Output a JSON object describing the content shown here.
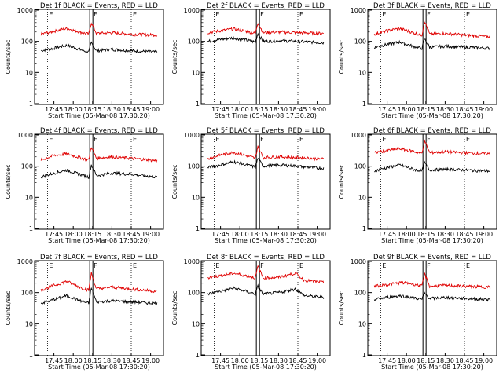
{
  "figure": {
    "ylabel": "Counts/sec",
    "xlabel": "Start Time (05-Mar-08 17:30:20)",
    "x_ticks": [
      "17:45",
      "18:00",
      "18:15",
      "18:30",
      "18:45",
      "19:00"
    ],
    "y_ticks": [
      "1000",
      "100",
      "10",
      "1"
    ],
    "marker_labels": [
      "E",
      "F",
      "E"
    ],
    "colors": {
      "events": "#000000",
      "lld": "#e00000"
    }
  },
  "chart_data": [
    {
      "type": "line",
      "title": "Det 1f BLACK = Events, RED = LLD",
      "xlabel": "Start Time (05-Mar-08 17:30:20)",
      "ylabel": "Counts/sec",
      "ylim": [
        1,
        1000
      ],
      "yscale": "log",
      "x_time_range": [
        "17:30",
        "19:10"
      ],
      "series": [
        {
          "name": "Events",
          "points": [
            [
              "17:35",
              50
            ],
            [
              "17:45",
              60
            ],
            [
              "17:55",
              75
            ],
            [
              "18:05",
              55
            ],
            [
              "18:12",
              45
            ],
            [
              "18:14",
              90
            ],
            [
              "18:18",
              50
            ],
            [
              "18:30",
              55
            ],
            [
              "18:45",
              50
            ],
            [
              "19:05",
              45
            ]
          ]
        },
        {
          "name": "LLD",
          "points": [
            [
              "17:35",
              170
            ],
            [
              "17:45",
              210
            ],
            [
              "17:55",
              260
            ],
            [
              "18:05",
              200
            ],
            [
              "18:12",
              170
            ],
            [
              "18:14",
              400
            ],
            [
              "18:18",
              180
            ],
            [
              "18:30",
              190
            ],
            [
              "18:45",
              170
            ],
            [
              "19:05",
              160
            ]
          ]
        }
      ]
    },
    {
      "type": "line",
      "title": "Det 2f BLACK = Events, RED = LLD",
      "xlabel": "Start Time (05-Mar-08 17:30:20)",
      "ylabel": "Counts/sec",
      "ylim": [
        1,
        1000
      ],
      "yscale": "log",
      "series": [
        {
          "name": "Events",
          "points": [
            [
              "17:35",
              100
            ],
            [
              "17:45",
              115
            ],
            [
              "17:55",
              130
            ],
            [
              "18:05",
              110
            ],
            [
              "18:12",
              95
            ],
            [
              "18:14",
              180
            ],
            [
              "18:18",
              100
            ],
            [
              "18:30",
              105
            ],
            [
              "18:45",
              100
            ],
            [
              "19:05",
              90
            ]
          ]
        },
        {
          "name": "LLD",
          "points": [
            [
              "17:35",
              190
            ],
            [
              "17:45",
              220
            ],
            [
              "17:55",
              250
            ],
            [
              "18:05",
              210
            ],
            [
              "18:12",
              180
            ],
            [
              "18:14",
              400
            ],
            [
              "18:18",
              190
            ],
            [
              "18:30",
              200
            ],
            [
              "18:45",
              190
            ],
            [
              "19:05",
              180
            ]
          ]
        }
      ]
    },
    {
      "type": "line",
      "title": "Det 3f BLACK = Events, RED = LLD",
      "xlabel": "Start Time (05-Mar-08 17:30:20)",
      "ylabel": "Counts/sec",
      "ylim": [
        1,
        1000
      ],
      "yscale": "log",
      "series": [
        {
          "name": "Events",
          "points": [
            [
              "17:35",
              65
            ],
            [
              "17:45",
              80
            ],
            [
              "17:55",
              95
            ],
            [
              "18:05",
              70
            ],
            [
              "18:12",
              60
            ],
            [
              "18:14",
              120
            ],
            [
              "18:18",
              65
            ],
            [
              "18:30",
              70
            ],
            [
              "18:45",
              65
            ],
            [
              "19:05",
              60
            ]
          ]
        },
        {
          "name": "LLD",
          "points": [
            [
              "17:35",
              170
            ],
            [
              "17:45",
              220
            ],
            [
              "17:55",
              260
            ],
            [
              "18:05",
              190
            ],
            [
              "18:12",
              160
            ],
            [
              "18:14",
              450
            ],
            [
              "18:18",
              170
            ],
            [
              "18:30",
              180
            ],
            [
              "18:45",
              160
            ],
            [
              "19:05",
              140
            ]
          ]
        }
      ]
    },
    {
      "type": "line",
      "title": "Det 4f BLACK = Events, RED = LLD",
      "xlabel": "Start Time (05-Mar-08 17:30:20)",
      "ylabel": "Counts/sec",
      "ylim": [
        1,
        1000
      ],
      "yscale": "log",
      "series": [
        {
          "name": "Events",
          "points": [
            [
              "17:35",
              45
            ],
            [
              "17:45",
              60
            ],
            [
              "17:55",
              75
            ],
            [
              "18:05",
              55
            ],
            [
              "18:12",
              45
            ],
            [
              "18:14",
              110
            ],
            [
              "18:18",
              50
            ],
            [
              "18:30",
              60
            ],
            [
              "18:45",
              55
            ],
            [
              "19:05",
              45
            ]
          ]
        },
        {
          "name": "LLD",
          "points": [
            [
              "17:35",
              160
            ],
            [
              "17:45",
              220
            ],
            [
              "17:55",
              250
            ],
            [
              "18:05",
              190
            ],
            [
              "18:12",
              160
            ],
            [
              "18:14",
              420
            ],
            [
              "18:18",
              180
            ],
            [
              "18:30",
              200
            ],
            [
              "18:45",
              180
            ],
            [
              "19:05",
              150
            ]
          ]
        }
      ]
    },
    {
      "type": "line",
      "title": "Det 5f BLACK = Events, RED = LLD",
      "xlabel": "Start Time (05-Mar-08 17:30:20)",
      "ylabel": "Counts/sec",
      "ylim": [
        1,
        1000
      ],
      "yscale": "log",
      "series": [
        {
          "name": "Events",
          "points": [
            [
              "17:35",
              90
            ],
            [
              "17:45",
              110
            ],
            [
              "17:55",
              140
            ],
            [
              "18:05",
              110
            ],
            [
              "18:12",
              95
            ],
            [
              "18:14",
              180
            ],
            [
              "18:18",
              100
            ],
            [
              "18:30",
              110
            ],
            [
              "18:45",
              100
            ],
            [
              "19:05",
              85
            ]
          ]
        },
        {
          "name": "LLD",
          "points": [
            [
              "17:35",
              170
            ],
            [
              "17:45",
              230
            ],
            [
              "17:55",
              280
            ],
            [
              "18:05",
              220
            ],
            [
              "18:12",
              180
            ],
            [
              "18:14",
              450
            ],
            [
              "18:18",
              190
            ],
            [
              "18:30",
              200
            ],
            [
              "18:45",
              190
            ],
            [
              "19:05",
              170
            ]
          ]
        }
      ]
    },
    {
      "type": "line",
      "title": "Det 6f BLACK = Events, RED = LLD",
      "xlabel": "Start Time (05-Mar-08 17:30:20)",
      "ylabel": "Counts/sec",
      "ylim": [
        1,
        1000
      ],
      "yscale": "log",
      "series": [
        {
          "name": "Events",
          "points": [
            [
              "17:35",
              70
            ],
            [
              "17:45",
              90
            ],
            [
              "17:55",
              110
            ],
            [
              "18:05",
              80
            ],
            [
              "18:12",
              70
            ],
            [
              "18:14",
              130
            ],
            [
              "18:18",
              75
            ],
            [
              "18:30",
              80
            ],
            [
              "18:45",
              75
            ],
            [
              "19:05",
              70
            ]
          ]
        },
        {
          "name": "LLD",
          "points": [
            [
              "17:35",
              270
            ],
            [
              "17:45",
              320
            ],
            [
              "17:55",
              360
            ],
            [
              "18:05",
              300
            ],
            [
              "18:12",
              260
            ],
            [
              "18:14",
              650
            ],
            [
              "18:18",
              270
            ],
            [
              "18:30",
              290
            ],
            [
              "18:45",
              270
            ],
            [
              "19:05",
              250
            ]
          ]
        }
      ]
    },
    {
      "type": "line",
      "title": "Det 7f BLACK = Events, RED = LLD",
      "xlabel": "Start Time (05-Mar-08 17:30:20)",
      "ylabel": "Counts/sec",
      "ylim": [
        1,
        1000
      ],
      "yscale": "log",
      "series": [
        {
          "name": "Events",
          "points": [
            [
              "17:35",
              45
            ],
            [
              "17:45",
              60
            ],
            [
              "17:55",
              80
            ],
            [
              "18:05",
              55
            ],
            [
              "18:12",
              45
            ],
            [
              "18:14",
              140
            ],
            [
              "18:18",
              50
            ],
            [
              "18:30",
              55
            ],
            [
              "18:45",
              50
            ],
            [
              "19:05",
              45
            ]
          ]
        },
        {
          "name": "LLD",
          "points": [
            [
              "17:35",
              120
            ],
            [
              "17:45",
              170
            ],
            [
              "17:55",
              230
            ],
            [
              "18:05",
              150
            ],
            [
              "18:12",
              120
            ],
            [
              "18:14",
              420
            ],
            [
              "18:18",
              130
            ],
            [
              "18:30",
              150
            ],
            [
              "18:45",
              130
            ],
            [
              "19:05",
              110
            ]
          ]
        }
      ]
    },
    {
      "type": "line",
      "title": "Det 8f BLACK = Events, RED = LLD",
      "xlabel": "Start Time (05-Mar-08 17:30:20)",
      "ylabel": "Counts/sec",
      "ylim": [
        1,
        1000
      ],
      "yscale": "log",
      "series": [
        {
          "name": "Events",
          "points": [
            [
              "17:35",
              90
            ],
            [
              "17:45",
              110
            ],
            [
              "17:55",
              140
            ],
            [
              "18:05",
              110
            ],
            [
              "18:12",
              90
            ],
            [
              "18:14",
              160
            ],
            [
              "18:18",
              90
            ],
            [
              "18:30",
              100
            ],
            [
              "18:43",
              130
            ],
            [
              "18:50",
              80
            ],
            [
              "19:05",
              70
            ]
          ]
        },
        {
          "name": "LLD",
          "points": [
            [
              "17:35",
              300
            ],
            [
              "17:45",
              350
            ],
            [
              "17:55",
              420
            ],
            [
              "18:05",
              350
            ],
            [
              "18:12",
              300
            ],
            [
              "18:14",
              700
            ],
            [
              "18:18",
              300
            ],
            [
              "18:30",
              310
            ],
            [
              "18:43",
              420
            ],
            [
              "18:50",
              250
            ],
            [
              "19:05",
              210
            ]
          ]
        }
      ]
    },
    {
      "type": "line",
      "title": "Det 9f BLACK = Events, RED = LLD",
      "xlabel": "Start Time (05-Mar-08 17:30:20)",
      "ylabel": "Counts/sec",
      "ylim": [
        1,
        1000
      ],
      "yscale": "log",
      "series": [
        {
          "name": "Events",
          "points": [
            [
              "17:35",
              60
            ],
            [
              "17:45",
              70
            ],
            [
              "17:55",
              80
            ],
            [
              "18:05",
              70
            ],
            [
              "18:12",
              60
            ],
            [
              "18:14",
              95
            ],
            [
              "18:18",
              65
            ],
            [
              "18:30",
              70
            ],
            [
              "18:45",
              65
            ],
            [
              "19:05",
              60
            ]
          ]
        },
        {
          "name": "LLD",
          "points": [
            [
              "17:35",
              160
            ],
            [
              "17:45",
              180
            ],
            [
              "17:55",
              210
            ],
            [
              "18:05",
              190
            ],
            [
              "18:12",
              160
            ],
            [
              "18:14",
              400
            ],
            [
              "18:18",
              160
            ],
            [
              "18:30",
              170
            ],
            [
              "18:45",
              160
            ],
            [
              "19:05",
              150
            ]
          ]
        }
      ]
    }
  ]
}
